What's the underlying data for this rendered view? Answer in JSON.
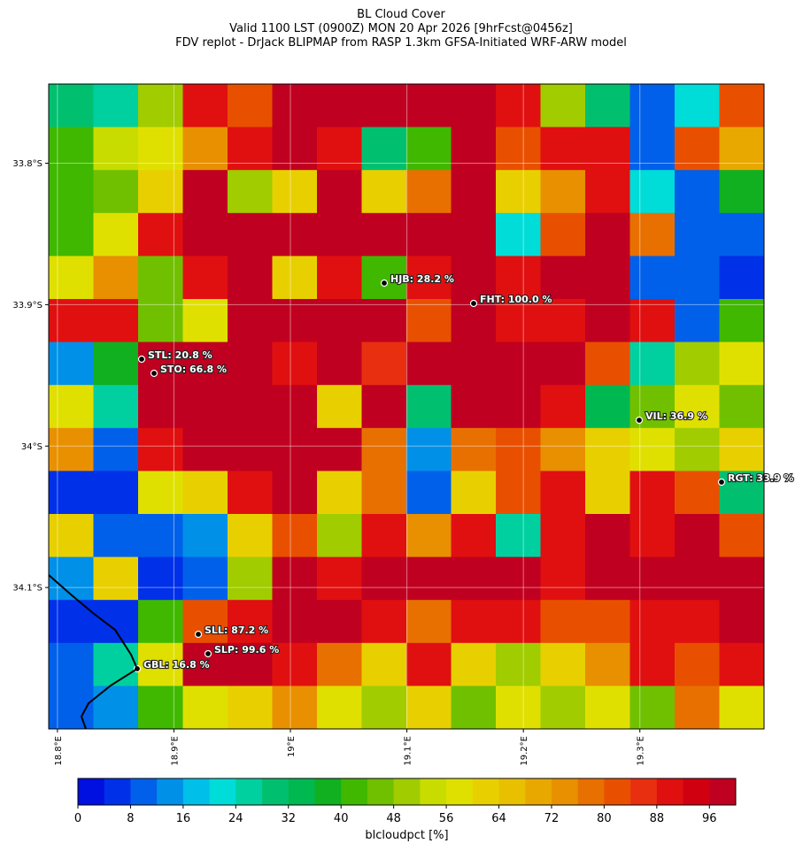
{
  "chart_data": {
    "type": "heatmap",
    "title": [
      "BL Cloud Cover",
      "Valid 1100 LST (0900Z) MON 20 Apr 2026 [9hrFcst@0456z]",
      "FDV replot - DrJack BLIPMAP from RASP 1.3km GFSA-Initiated WRF-ARW model"
    ],
    "xlim": [
      18.7925,
      19.4066
    ],
    "ylim": [
      -34.2,
      -33.744
    ],
    "xticks": [
      {
        "value": 18.8,
        "label": "18.8°E"
      },
      {
        "value": 18.9,
        "label": "18.9°E"
      },
      {
        "value": 19.0,
        "label": "19°E"
      },
      {
        "value": 19.1,
        "label": "19.1°E"
      },
      {
        "value": 19.2,
        "label": "19.2°E"
      },
      {
        "value": 19.3,
        "label": "19.3°E"
      }
    ],
    "yticks": [
      {
        "value": -33.8,
        "label": "33.8°S"
      },
      {
        "value": -33.9,
        "label": "33.9°S"
      },
      {
        "value": -34.0,
        "label": "34°S"
      },
      {
        "value": -34.1,
        "label": "34.1°S"
      }
    ],
    "grid": true,
    "values": [
      [
        30,
        24,
        50,
        90,
        80,
        96,
        96,
        96,
        96,
        96,
        90,
        50,
        30,
        10,
        20,
        80
      ],
      [
        40,
        52,
        56,
        72,
        88,
        96,
        90,
        30,
        40,
        96,
        80,
        88,
        90,
        8,
        80,
        70
      ],
      [
        40,
        44,
        60,
        96,
        50,
        60,
        96,
        60,
        76,
        96,
        60,
        72,
        90,
        20,
        8,
        36
      ],
      [
        40,
        56,
        90,
        96,
        96,
        96,
        96,
        96,
        96,
        96,
        20,
        80,
        96,
        76,
        10,
        10
      ],
      [
        56,
        72,
        44,
        90,
        96,
        60,
        88,
        40,
        90,
        96,
        90,
        96,
        96,
        8,
        8,
        4
      ],
      [
        90,
        88,
        44,
        56,
        96,
        96,
        96,
        96,
        80,
        96,
        90,
        90,
        96,
        90,
        8,
        40
      ],
      [
        12,
        36,
        96,
        96,
        96,
        90,
        96,
        84,
        96,
        96,
        96,
        96,
        80,
        24,
        48,
        56
      ],
      [
        56,
        24,
        96,
        96,
        96,
        96,
        60,
        96,
        28,
        96,
        96,
        90,
        32,
        44,
        56,
        44
      ],
      [
        72,
        8,
        90,
        96,
        96,
        96,
        96,
        76,
        12,
        76,
        80,
        72,
        60,
        56,
        48,
        60
      ],
      [
        4,
        4,
        56,
        60,
        90,
        96,
        60,
        76,
        10,
        60,
        80,
        88,
        60,
        88,
        80,
        28
      ],
      [
        60,
        8,
        10,
        12,
        60,
        80,
        50,
        90,
        72,
        88,
        24,
        88,
        96,
        90,
        96,
        80
      ],
      [
        12,
        60,
        6,
        8,
        48,
        96,
        90,
        96,
        96,
        96,
        96,
        90,
        96,
        96,
        96,
        96
      ],
      [
        4,
        6,
        40,
        80,
        90,
        96,
        96,
        88,
        76,
        90,
        88,
        80,
        80,
        88,
        90,
        96
      ],
      [
        8,
        24,
        56,
        96,
        96,
        90,
        76,
        60,
        88,
        60,
        48,
        60,
        72,
        88,
        80,
        90
      ],
      [
        10,
        12,
        40,
        56,
        60,
        72,
        56,
        48,
        60,
        44,
        56,
        48,
        56,
        44,
        76,
        56
      ]
    ],
    "colorbar": {
      "label": "blcloudpct [%]",
      "lim": [
        0,
        100
      ],
      "ticks": [
        0,
        8,
        16,
        24,
        32,
        40,
        48,
        56,
        64,
        72,
        80,
        88,
        96
      ],
      "colors": [
        "#0010e0",
        "#0030e8",
        "#0060ea",
        "#0090e8",
        "#00bfe8",
        "#00dcd8",
        "#00d0a0",
        "#00c070",
        "#00b850",
        "#10b020",
        "#40b800",
        "#70c000",
        "#a0cc00",
        "#c8dc00",
        "#e0e000",
        "#e8d000",
        "#e8c000",
        "#e8a800",
        "#e89000",
        "#e87000",
        "#e85000",
        "#e83010",
        "#e01010",
        "#d00010",
        "#c00020"
      ]
    },
    "stations": [
      "HJB: 28.2 %",
      "FHT: 100.0 %",
      "STL: 20.8 %",
      "STO: 66.8 %",
      "VIL: 36.9 %",
      "RGT: 33.9 %",
      "SLL: 87.2 %",
      "SLP: 99.6 %",
      "GBL: 16.8 %"
    ]
  }
}
